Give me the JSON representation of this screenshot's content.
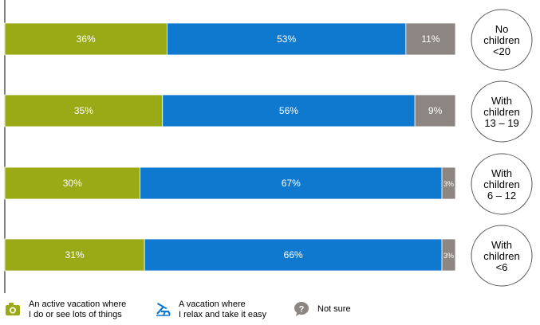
{
  "chart_data": {
    "type": "bar",
    "orientation": "horizontal",
    "stacked": true,
    "percent_stacked": true,
    "categories": [
      [
        "No",
        "children",
        "<20"
      ],
      [
        "With",
        "children",
        "13 – 19"
      ],
      [
        "With",
        "children",
        "6 – 12"
      ],
      [
        "With",
        "children",
        "<6"
      ]
    ],
    "series": [
      {
        "name": "An active vacation where\nI do or see lots of things",
        "color": "#9aaa16",
        "values": [
          36,
          35,
          30,
          31
        ],
        "labels": [
          "36%",
          "35%",
          "30%",
          "31%"
        ]
      },
      {
        "name": "A vacation where\nI relax and take it easy",
        "color": "#0f79cf",
        "values": [
          53,
          56,
          67,
          66
        ],
        "labels": [
          "53%",
          "56%",
          "67%",
          "66%"
        ]
      },
      {
        "name": "Not sure",
        "color": "#8c8582",
        "values": [
          11,
          9,
          3,
          3
        ],
        "labels": [
          "11%",
          "9%",
          "3%",
          "3%"
        ]
      }
    ],
    "legend_position": "bottom",
    "grid": false,
    "xlim": [
      0,
      100
    ]
  },
  "legend": {
    "icons": [
      "camera-icon",
      "beach-chair-icon",
      "question-mark-icon"
    ]
  }
}
